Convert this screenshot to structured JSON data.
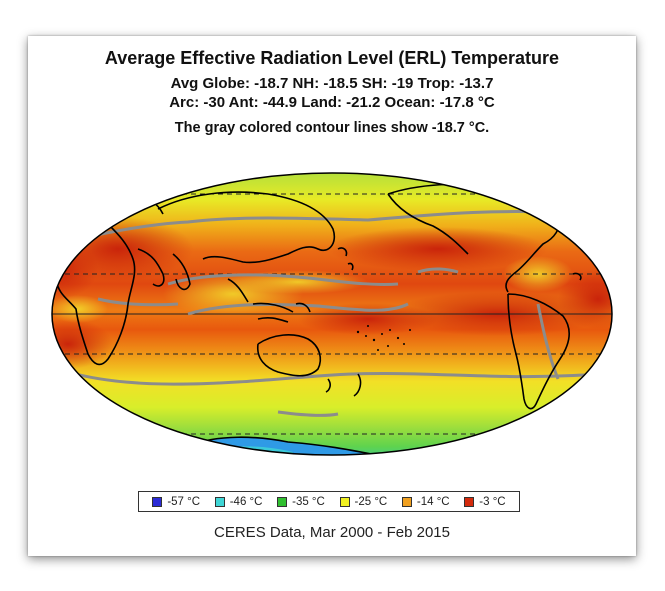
{
  "title": "Average Effective Radiation Level (ERL) Temperature",
  "stats_line1": "Avg Globe: -18.7  NH: -18.5  SH: -19  Trop: -13.7",
  "stats_line2": "Arc: -30  Ant: -44.9  Land: -21.2  Ocean: -17.8 °C",
  "contour_note": "The gray colored contour lines show -18.7 °C.",
  "legend": [
    {
      "label": "-57 °C",
      "color": "#2b2bd6"
    },
    {
      "label": "-46 °C",
      "color": "#3fd6d6"
    },
    {
      "label": "-35 °C",
      "color": "#2fbf2f"
    },
    {
      "label": "-25 °C",
      "color": "#f0f020"
    },
    {
      "label": "-14 °C",
      "color": "#f0a020"
    },
    {
      "label": "-3 °C",
      "color": "#d42a0c"
    }
  ],
  "source": "CERES Data, Mar 2000 - Feb 2015",
  "colors": {
    "polar": "#2fa0e0",
    "subpolar": "#7ee04a",
    "midlat": "#e4ee28",
    "warm": "#f08c14",
    "hot": "#d4300c",
    "contour": "#8a8a8a"
  }
}
